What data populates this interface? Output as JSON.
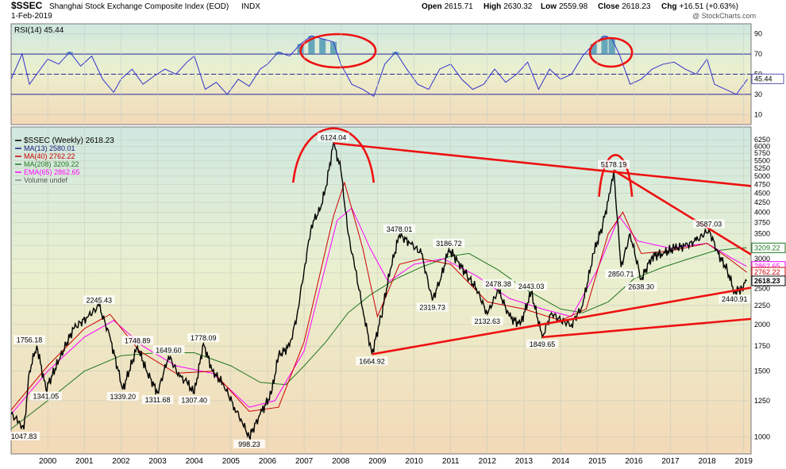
{
  "header": {
    "title": "$SSEC",
    "subtitle": "Shanghai Stock Exchange Composite Index (EOD)",
    "exchange": "INDX",
    "date": "1-Feb-2019",
    "copyright": "@ StockCharts.com",
    "ohlc": {
      "open_label": "Open",
      "open": "2615.71",
      "high_label": "High",
      "high": "2630.32",
      "low_label": "Low",
      "low": "2559.98",
      "close_label": "Close",
      "close": "2618.23",
      "chg_label": "Chg",
      "chg": "+16.51 (+0.63%)"
    }
  },
  "colors": {
    "price": "#000000",
    "ma13": "#1a1a7a",
    "ma40": "#cc0000",
    "ma208": "#227722",
    "ema65": "#ff00ff",
    "rsi": "#3333cc",
    "annotation": "#ee1111",
    "bg_top": "#cfe8e0",
    "bg_bottom": "#f3dcb8"
  },
  "chart_data": [
    {
      "type": "line",
      "title": "RSI(14) 45.44",
      "legend": "RSI(14) 45.44",
      "ylim": [
        0,
        100
      ],
      "y_ticks": [
        10,
        30,
        50,
        70,
        90
      ],
      "reference_lines": [
        30,
        50,
        70
      ],
      "last_value_label": "45.44",
      "series": [
        {
          "name": "RSI(14)",
          "x": [
            1999.0,
            1999.3,
            1999.5,
            1999.8,
            2000.0,
            2000.3,
            2000.6,
            2000.9,
            2001.2,
            2001.5,
            2001.8,
            2002.0,
            2002.3,
            2002.6,
            2002.9,
            2003.2,
            2003.5,
            2003.8,
            2004.0,
            2004.3,
            2004.6,
            2004.9,
            2005.2,
            2005.5,
            2005.8,
            2006.0,
            2006.3,
            2006.6,
            2006.9,
            2007.2,
            2007.5,
            2007.8,
            2008.0,
            2008.3,
            2008.6,
            2008.9,
            2009.2,
            2009.5,
            2009.8,
            2010.1,
            2010.4,
            2010.7,
            2011.0,
            2011.3,
            2011.6,
            2011.9,
            2012.2,
            2012.5,
            2012.8,
            2013.1,
            2013.4,
            2013.7,
            2014.0,
            2014.3,
            2014.6,
            2014.9,
            2015.2,
            2015.4,
            2015.6,
            2015.9,
            2016.2,
            2016.5,
            2016.8,
            2017.1,
            2017.4,
            2017.7,
            2018.0,
            2018.2,
            2018.5,
            2018.8,
            2019.1
          ],
          "values": [
            45,
            70,
            40,
            55,
            65,
            60,
            72,
            58,
            68,
            45,
            32,
            45,
            55,
            40,
            48,
            55,
            50,
            62,
            68,
            35,
            42,
            30,
            45,
            38,
            55,
            60,
            72,
            68,
            80,
            88,
            85,
            82,
            60,
            40,
            35,
            28,
            60,
            72,
            55,
            40,
            35,
            55,
            60,
            45,
            35,
            40,
            55,
            42,
            50,
            62,
            35,
            55,
            45,
            50,
            68,
            80,
            88,
            85,
            70,
            40,
            45,
            55,
            60,
            62,
            55,
            50,
            65,
            40,
            35,
            30,
            45
          ]
        }
      ]
    },
    {
      "type": "line",
      "title": "$SSEC (Weekly) 2618.23",
      "yscale": "log",
      "ylim": [
        900,
        6700
      ],
      "y_ticks": [
        1000,
        1250,
        1500,
        1750,
        2000,
        2250,
        2500,
        2750,
        3000,
        3250,
        3500,
        3750,
        4000,
        4250,
        4500,
        4750,
        5000,
        5250,
        5500,
        5750,
        6000,
        6250
      ],
      "x_ticks": [
        "2000",
        "2001",
        "2002",
        "2003",
        "2004",
        "2005",
        "2006",
        "2007",
        "2008",
        "2009",
        "2010",
        "2011",
        "2012",
        "2013",
        "2014",
        "2015",
        "2016",
        "2017",
        "2018",
        "2019"
      ],
      "legend": [
        {
          "label": "$SSEC (Weekly) 2618.23",
          "color": "#000000"
        },
        {
          "label": "MA(13) 2580.01",
          "color": "#1a1a7a"
        },
        {
          "label": "MA(40) 2762.22",
          "color": "#cc0000"
        },
        {
          "label": "MA(208) 3209.22",
          "color": "#227722"
        },
        {
          "label": "EMA(65) 2862.65",
          "color": "#ff00ff"
        },
        {
          "label": "Volume undef",
          "color": "#888888"
        }
      ],
      "right_axis_labels": [
        {
          "text": "3209.22",
          "value": 3209.22,
          "color": "#227722"
        },
        {
          "text": "2862.65",
          "value": 2862.65,
          "color": "#ff00ff"
        },
        {
          "text": "2762.22",
          "value": 2762.22,
          "color": "#cc0000"
        },
        {
          "text": "2618.23",
          "value": 2618.23,
          "color": "#000000"
        }
      ],
      "annotations": [
        {
          "text": "1047.83",
          "x": 1999.35,
          "y": 1047.83
        },
        {
          "text": "1756.18",
          "x": 1999.5,
          "y": 1756.18
        },
        {
          "text": "1341.05",
          "x": 1999.95,
          "y": 1341.05
        },
        {
          "text": "2245.43",
          "x": 2001.4,
          "y": 2245.43
        },
        {
          "text": "1748.89",
          "x": 2002.45,
          "y": 1748.89
        },
        {
          "text": "1339.20",
          "x": 2002.05,
          "y": 1339.2
        },
        {
          "text": "1649.60",
          "x": 2003.3,
          "y": 1649.6
        },
        {
          "text": "1311.68",
          "x": 2003.0,
          "y": 1311.68
        },
        {
          "text": "1778.09",
          "x": 2004.25,
          "y": 1778.09
        },
        {
          "text": "1307.40",
          "x": 2004.0,
          "y": 1307.4
        },
        {
          "text": "998.23",
          "x": 2005.5,
          "y": 998.23
        },
        {
          "text": "6124.04",
          "x": 2007.8,
          "y": 6124.04
        },
        {
          "text": "1664.92",
          "x": 2008.85,
          "y": 1664.92
        },
        {
          "text": "3478.01",
          "x": 2009.6,
          "y": 3478.01
        },
        {
          "text": "2319.73",
          "x": 2010.5,
          "y": 2319.73
        },
        {
          "text": "3186.72",
          "x": 2010.95,
          "y": 3186.72
        },
        {
          "text": "2478.38",
          "x": 2012.3,
          "y": 2478.38
        },
        {
          "text": "2132.63",
          "x": 2012.0,
          "y": 2132.63
        },
        {
          "text": "2443.03",
          "x": 2013.2,
          "y": 2443.03
        },
        {
          "text": "1849.65",
          "x": 2013.5,
          "y": 1849.65
        },
        {
          "text": "5178.19",
          "x": 2015.45,
          "y": 5178.19
        },
        {
          "text": "2850.71",
          "x": 2015.65,
          "y": 2850.71
        },
        {
          "text": "2638.30",
          "x": 2016.2,
          "y": 2638.3
        },
        {
          "text": "3587.03",
          "x": 2018.05,
          "y": 3587.03
        },
        {
          "text": "2440.91",
          "x": 2018.75,
          "y": 2440.91
        }
      ],
      "trendlines": [
        {
          "from": [
            2007.8,
            6124.04
          ],
          "to": [
            2019.2,
            4700
          ]
        },
        {
          "from": [
            2008.85,
            1664.92
          ],
          "to": [
            2019.2,
            2510
          ]
        },
        {
          "from": [
            2013.5,
            1849.65
          ],
          "to": [
            2019.2,
            2070
          ]
        },
        {
          "from": [
            2015.45,
            5178.19
          ],
          "to": [
            2019.2,
            3080
          ]
        }
      ],
      "series": [
        {
          "name": "$SSEC (Weekly)",
          "x": [
            1999.0,
            1999.2,
            1999.35,
            1999.5,
            1999.7,
            1999.95,
            2000.3,
            2000.7,
            2001.1,
            2001.4,
            2001.7,
            2002.05,
            2002.45,
            2002.7,
            2003.0,
            2003.3,
            2003.6,
            2003.8,
            2004.0,
            2004.25,
            2004.5,
            2004.8,
            2005.1,
            2005.3,
            2005.5,
            2005.8,
            2006.1,
            2006.3,
            2006.6,
            2006.8,
            2007.0,
            2007.2,
            2007.45,
            2007.6,
            2007.8,
            2008.0,
            2008.2,
            2008.4,
            2008.6,
            2008.85,
            2009.1,
            2009.35,
            2009.6,
            2009.9,
            2010.2,
            2010.5,
            2010.75,
            2010.95,
            2011.2,
            2011.45,
            2011.7,
            2012.0,
            2012.3,
            2012.6,
            2012.9,
            2013.2,
            2013.5,
            2013.75,
            2014.0,
            2014.3,
            2014.6,
            2014.9,
            2015.15,
            2015.35,
            2015.45,
            2015.65,
            2015.9,
            2016.2,
            2016.5,
            2016.8,
            2017.1,
            2017.4,
            2017.7,
            2018.05,
            2018.3,
            2018.55,
            2018.75,
            2018.95,
            2019.08
          ],
          "values": [
            1150,
            1100,
            1047.83,
            1500,
            1756.18,
            1341.05,
            1600,
            1950,
            2100,
            2245.43,
            1850,
            1339.2,
            1748.89,
            1500,
            1311.68,
            1649.6,
            1450,
            1400,
            1307.4,
            1778.09,
            1500,
            1380,
            1200,
            1100,
            998.23,
            1150,
            1300,
            1650,
            1750,
            2100,
            2800,
            3700,
            4100,
            4700,
            6124.04,
            5200,
            3500,
            2800,
            2200,
            1664.92,
            2100,
            2800,
            3478.01,
            3300,
            3100,
            2319.73,
            2700,
            3186.72,
            2950,
            2700,
            2500,
            2132.63,
            2478.38,
            2100,
            2000,
            2443.03,
            1849.65,
            2150,
            2050,
            2000,
            2250,
            3100,
            3700,
            4500,
            5178.19,
            2850.71,
            3500,
            2638.3,
            3050,
            3100,
            3200,
            3250,
            3350,
            3587.03,
            3100,
            2800,
            2440.91,
            2500,
            2618.23
          ]
        },
        {
          "name": "MA(40)",
          "x": [
            1999.0,
            2000.0,
            2001.0,
            2001.7,
            2002.5,
            2003.5,
            2004.5,
            2005.5,
            2006.3,
            2007.0,
            2007.8,
            2008.1,
            2008.6,
            2009.0,
            2009.6,
            2010.2,
            2011.0,
            2012.0,
            2013.0,
            2014.0,
            2014.7,
            2015.3,
            2015.7,
            2016.2,
            2017.0,
            2018.0,
            2018.6,
            2019.08
          ],
          "values": [
            1180,
            1550,
            1950,
            2130,
            1700,
            1480,
            1500,
            1170,
            1200,
            1800,
            3900,
            4800,
            3200,
            2100,
            2900,
            3000,
            2900,
            2300,
            2200,
            2050,
            2200,
            3500,
            4000,
            3100,
            3150,
            3300,
            3000,
            2762.22
          ]
        },
        {
          "name": "MA(208)",
          "x": [
            1999.0,
            2000.0,
            2001.0,
            2002.0,
            2003.0,
            2004.0,
            2005.0,
            2005.8,
            2006.5,
            2007.0,
            2007.6,
            2008.2,
            2008.8,
            2009.5,
            2010.2,
            2011.0,
            2011.5,
            2012.3,
            2013.0,
            2014.0,
            2014.6,
            2015.3,
            2016.0,
            2016.8,
            2017.5,
            2018.2,
            2018.8,
            2019.08
          ],
          "values": [
            1050,
            1250,
            1500,
            1650,
            1680,
            1680,
            1550,
            1400,
            1380,
            1550,
            1800,
            2150,
            2400,
            2650,
            2850,
            3050,
            3100,
            2800,
            2500,
            2200,
            2150,
            2300,
            2650,
            2850,
            3000,
            3150,
            3200,
            3209.22
          ]
        },
        {
          "name": "EMA(65)",
          "x": [
            1999.0,
            2000.0,
            2001.0,
            2001.8,
            2002.6,
            2003.5,
            2004.5,
            2005.5,
            2006.2,
            2007.0,
            2007.9,
            2008.3,
            2008.8,
            2009.3,
            2010.0,
            2010.8,
            2011.7,
            2012.6,
            2013.5,
            2014.3,
            2015.0,
            2015.6,
            2016.1,
            2017.0,
            2018.0,
            2018.7,
            2019.08
          ],
          "values": [
            1150,
            1500,
            1850,
            2050,
            1750,
            1550,
            1480,
            1200,
            1250,
            1700,
            3800,
            4100,
            3200,
            2600,
            2900,
            3000,
            2700,
            2350,
            2200,
            2100,
            2800,
            3900,
            3350,
            3200,
            3300,
            3000,
            2862.65
          ]
        }
      ]
    }
  ]
}
